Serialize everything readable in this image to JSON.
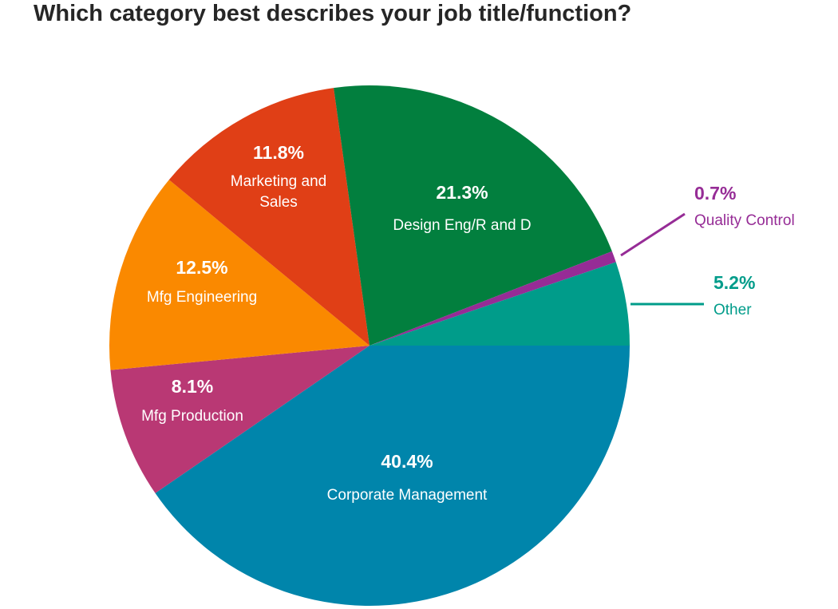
{
  "chart_data": {
    "type": "pie",
    "title": "Which category best describes your job title/function?",
    "slices": [
      {
        "label": "Corporate Management",
        "percent_label": "40.4%",
        "value": 40.4,
        "color": "#0085AB"
      },
      {
        "label": "Mfg Production",
        "percent_label": "8.1%",
        "value": 8.1,
        "color": "#B93874"
      },
      {
        "label": "Mfg Engineering",
        "percent_label": "12.5%",
        "value": 12.5,
        "color": "#FA8900"
      },
      {
        "label": "Marketing and Sales",
        "percent_label": "11.8%",
        "value": 11.8,
        "color": "#E03F16"
      },
      {
        "label": "Design Eng/R and D",
        "percent_label": "21.3%",
        "value": 21.3,
        "color": "#027F3E"
      },
      {
        "label": "Quality Control",
        "percent_label": "0.7%",
        "value": 0.7,
        "color": "#962C96"
      },
      {
        "label": "Other",
        "percent_label": "5.2%",
        "value": 5.2,
        "color": "#009C8A"
      }
    ]
  }
}
